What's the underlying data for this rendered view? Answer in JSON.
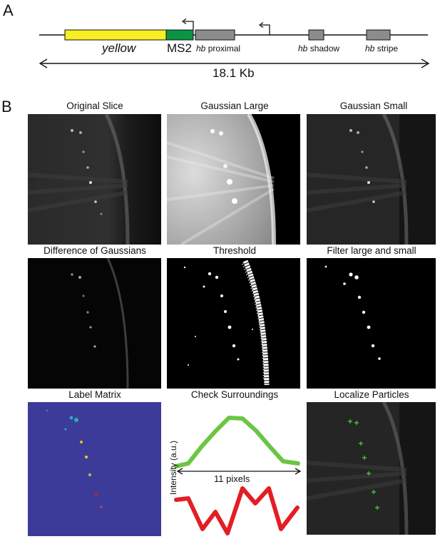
{
  "panel_a": {
    "letter": "A",
    "gene_labels": {
      "yellow": "yellow",
      "ms2": "MS2",
      "hb_proximal": {
        "italic": "hb",
        "rest": " proximal"
      },
      "hb_shadow": {
        "italic": "hb",
        "rest": " shadow"
      },
      "hb_stripe": {
        "italic": "hb",
        "rest": " stripe"
      }
    },
    "length_label": "18.1 Kb",
    "colors": {
      "yellow": "#f7ee23",
      "ms2": "#0b9444",
      "enhancer": "#8c8c8c"
    }
  },
  "panel_b": {
    "letter": "B",
    "titles": {
      "original": "Original Slice",
      "gauss_large": "Gaussian Large",
      "gauss_small": "Gaussian Small",
      "dog": "Difference of Gaussians",
      "threshold": "Threshold",
      "filter": "Filter large and small",
      "label_matrix": "Label Matrix",
      "check": "Check Surroundings",
      "localize": "Localize Particles"
    },
    "check_surroundings": {
      "ylabel": "Intensity (a.u.)",
      "xlabel": "11 pixels",
      "good_color": "#6cc644",
      "bad_color": "#e31e24"
    },
    "label_matrix_bg": "#3c3b9a"
  }
}
